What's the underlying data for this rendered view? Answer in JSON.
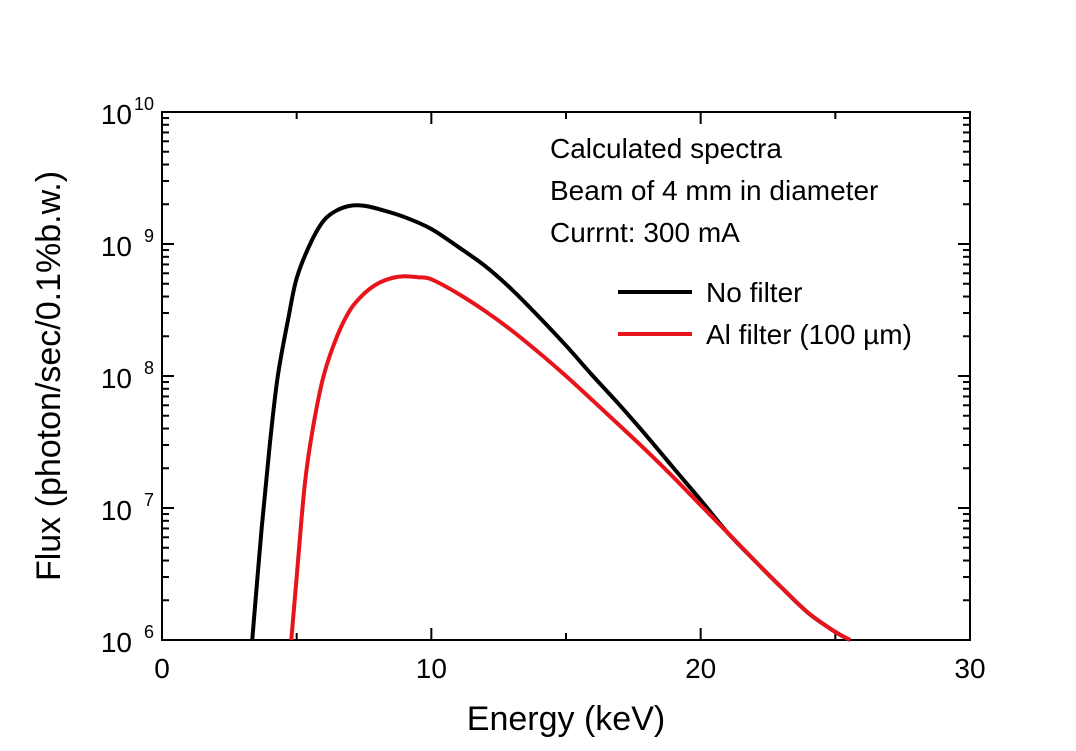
{
  "chart_data": {
    "type": "line",
    "xlabel": "Energy (keV)",
    "ylabel": "Flux (photon/sec/0.1%b.w.)",
    "xlim": [
      0,
      30
    ],
    "ylim": [
      1000000,
      10000000000
    ],
    "yscale": "log",
    "grid": false,
    "legend_position": "upper-right",
    "x_ticks": [
      {
        "value": 0,
        "label": "0"
      },
      {
        "value": 10,
        "label": "10"
      },
      {
        "value": 20,
        "label": "20"
      },
      {
        "value": 30,
        "label": "30"
      }
    ],
    "y_ticks": [
      {
        "value": 1000000,
        "base": "10",
        "exp": "6"
      },
      {
        "value": 10000000,
        "base": "10",
        "exp": "7"
      },
      {
        "value": 100000000,
        "base": "10",
        "exp": "8"
      },
      {
        "value": 1000000000,
        "base": "10",
        "exp": "9"
      },
      {
        "value": 10000000000,
        "base": "10",
        "exp": "10"
      }
    ],
    "annotations": [
      "Calculated spectra",
      "Beam of 4 mm in diameter",
      "Currnt: 300 mA"
    ],
    "series": [
      {
        "name": "No filter",
        "color": "#000000",
        "x": [
          3.35,
          3.7,
          4.0,
          4.3,
          4.7,
          5.0,
          5.5,
          6.0,
          6.5,
          7.0,
          7.5,
          8.0,
          9.0,
          10.0,
          11.0,
          12.0,
          13.0,
          14.0,
          15.0,
          16.0,
          17.0,
          18.0,
          19.0,
          20.0,
          21.0,
          22.0,
          23.0,
          24.0,
          25.0,
          25.55
        ],
        "y": [
          1000000,
          7000000,
          30000000,
          100000000,
          280000000,
          550000000,
          1000000000,
          1500000000,
          1800000000,
          1950000000,
          1950000000,
          1850000000,
          1600000000,
          1300000000,
          950000000,
          680000000,
          450000000,
          280000000,
          170000000,
          100000000,
          60000000,
          35000000,
          20000000,
          11500000,
          6500000,
          4000000,
          2500000,
          1600000,
          1150000,
          1000000
        ]
      },
      {
        "name": "Al filter (100 µm)",
        "color": "#e8141c",
        "x": [
          4.8,
          5.0,
          5.3,
          5.6,
          6.0,
          6.5,
          7.0,
          7.5,
          8.0,
          8.5,
          9.0,
          9.5,
          10.0,
          11.0,
          12.0,
          13.0,
          14.0,
          15.0,
          16.0,
          17.0,
          18.0,
          19.0,
          20.0,
          21.0,
          22.0,
          23.0,
          24.0,
          25.0,
          25.55
        ],
        "y": [
          1000000,
          3000000,
          15000000,
          40000000,
          100000000,
          200000000,
          320000000,
          420000000,
          500000000,
          550000000,
          570000000,
          560000000,
          540000000,
          420000000,
          310000000,
          220000000,
          150000000,
          100000000,
          65000000,
          42000000,
          27000000,
          17000000,
          10500000,
          6500000,
          4000000,
          2500000,
          1600000,
          1150000,
          1000000
        ]
      }
    ]
  }
}
